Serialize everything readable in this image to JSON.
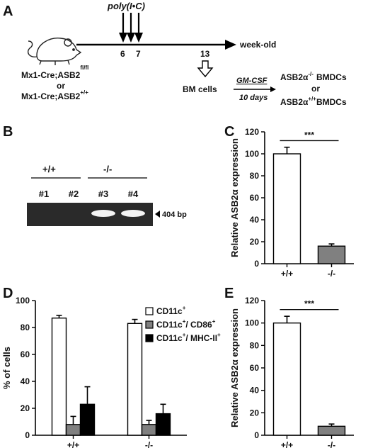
{
  "panels": {
    "a": "A",
    "b": "B",
    "c": "C",
    "d": "D",
    "e": "E"
  },
  "panel_a": {
    "treatment": "poly(I•C)",
    "tick_6": "6",
    "tick_7": "7",
    "tick_13": "13",
    "axis_label": "week-old",
    "mouse_line1": "Mx1-Cre;ASB2",
    "mouse_line1_sup": "fl/fl",
    "or_1": "or",
    "mouse_line2": "Mx1-Cre;ASB2",
    "mouse_line2_sup": "+/+",
    "bm_cells": "BM cells",
    "culture_factor": "GM-CSF",
    "culture_time": "10 days",
    "out1_a": "ASB2α",
    "out1_sup": "-/-",
    "out1_b": "BMDCs",
    "or_2": "or",
    "out2_a": "ASB2α",
    "out2_sup": "+/+",
    "out2_b": "BMDCs"
  },
  "panel_b": {
    "group_wt": "+/+",
    "group_ko": "-/-",
    "lanes": [
      "#1",
      "#2",
      "#3",
      "#4"
    ],
    "band_label": "404 bp",
    "bands_present": [
      false,
      false,
      true,
      true
    ]
  },
  "chart_data": [
    {
      "panel": "C",
      "type": "bar",
      "categories": [
        "+/+",
        "-/-"
      ],
      "values": [
        100,
        16
      ],
      "errors": [
        6,
        2
      ],
      "colors": [
        "#ffffff",
        "#808080"
      ],
      "ylabel": "Relative ASB2α expression",
      "ylim": [
        0,
        120
      ],
      "yticks": [
        0,
        20,
        40,
        60,
        80,
        100,
        120
      ],
      "significance": "***"
    },
    {
      "panel": "D",
      "type": "bar",
      "categories": [
        "+/+",
        "-/-"
      ],
      "ylabel": "% of cells",
      "ylim": [
        0,
        100
      ],
      "yticks": [
        0,
        20,
        40,
        60,
        80,
        100
      ],
      "legend_position": "top-right",
      "series": [
        {
          "name": "CD11c",
          "name_sup": "+",
          "name_rest": "",
          "name_rest_sup": "",
          "color": "#ffffff",
          "values": [
            87,
            83
          ],
          "errors": [
            2,
            3
          ]
        },
        {
          "name": "CD11c",
          "name_sup": "+",
          "name_rest": "/ CD86",
          "name_rest_sup": "+",
          "color": "#808080",
          "values": [
            8,
            8
          ],
          "errors": [
            6,
            3
          ]
        },
        {
          "name": "CD11c",
          "name_sup": "+",
          "name_rest": "/ MHC-II",
          "name_rest_sup": "+",
          "color": "#000000",
          "values": [
            23,
            16
          ],
          "errors": [
            13,
            7
          ]
        }
      ]
    },
    {
      "panel": "E",
      "type": "bar",
      "categories": [
        "+/+",
        "-/-"
      ],
      "values": [
        100,
        8
      ],
      "errors": [
        6,
        2
      ],
      "colors": [
        "#ffffff",
        "#808080"
      ],
      "ylabel": "Relative ASB2α expression",
      "ylim": [
        0,
        120
      ],
      "yticks": [
        0,
        20,
        40,
        60,
        80,
        100,
        120
      ],
      "significance": "***"
    }
  ]
}
